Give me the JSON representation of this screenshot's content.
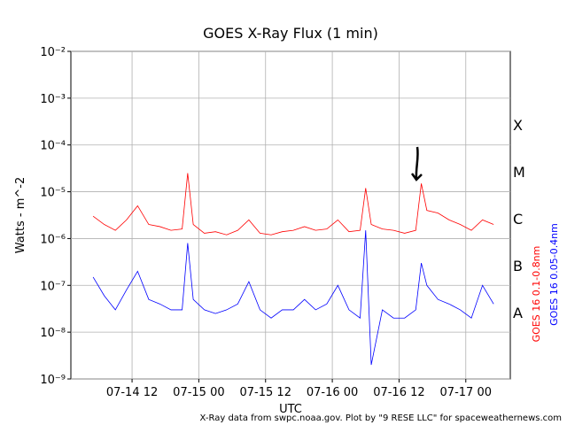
{
  "chart_data": {
    "type": "line",
    "title": "GOES X-Ray Flux (1 min)",
    "xlabel": "UTC",
    "ylabel": "Watts - m^-2",
    "footer": "X-Ray data from swpc.noaa.gov. Plot by \"9 RESE LLC\" for spaceweathernews.com",
    "class_labels": [
      "A",
      "B",
      "C",
      "M",
      "X"
    ],
    "ylog": true,
    "grid": true,
    "xlim": [
      "07-14 01",
      "07-17 08"
    ],
    "xticks": [
      "07-14 12",
      "07-15 00",
      "07-15 12",
      "07-16 00",
      "07-16 12",
      "07-17 00"
    ],
    "ylim": [
      1e-09,
      0.01
    ],
    "yticks": [
      {
        "value": 1e-09,
        "label": "10⁻⁹"
      },
      {
        "value": 1e-08,
        "label": "10⁻⁸"
      },
      {
        "value": 1e-07,
        "label": "10⁻⁷"
      },
      {
        "value": 1e-06,
        "label": "10⁻⁶"
      },
      {
        "value": 1e-05,
        "label": "10⁻⁵"
      },
      {
        "value": 0.0001,
        "label": "10⁻⁴"
      },
      {
        "value": 0.001,
        "label": "10⁻³"
      },
      {
        "value": 0.01,
        "label": "10⁻²"
      }
    ],
    "x": [
      "07-14 05",
      "07-14 07",
      "07-14 09",
      "07-14 11",
      "07-14 13",
      "07-14 15",
      "07-14 17",
      "07-14 19",
      "07-14 21",
      "07-14 22",
      "07-14 23",
      "07-15 01",
      "07-15 03",
      "07-15 05",
      "07-15 07",
      "07-15 09",
      "07-15 11",
      "07-15 13",
      "07-15 15",
      "07-15 17",
      "07-15 19",
      "07-15 21",
      "07-15 23",
      "07-16 01",
      "07-16 03",
      "07-16 05",
      "07-16 06",
      "07-16 07",
      "07-16 09",
      "07-16 11",
      "07-16 13",
      "07-16 15",
      "07-16 16",
      "07-16 17",
      "07-16 19",
      "07-16 21",
      "07-16 23",
      "07-17 01",
      "07-17 03",
      "07-17 05"
    ],
    "series": [
      {
        "name": "GOES 16 0.1-0.8nm",
        "color": "#ff0000",
        "values": [
          3e-06,
          2e-06,
          1.5e-06,
          2.5e-06,
          5e-06,
          2e-06,
          1.8e-06,
          1.5e-06,
          1.6e-06,
          2.5e-05,
          2e-06,
          1.3e-06,
          1.4e-06,
          1.2e-06,
          1.5e-06,
          2.5e-06,
          1.3e-06,
          1.2e-06,
          1.4e-06,
          1.5e-06,
          1.8e-06,
          1.5e-06,
          1.6e-06,
          2.5e-06,
          1.4e-06,
          1.5e-06,
          1.2e-05,
          2e-06,
          1.6e-06,
          1.5e-06,
          1.3e-06,
          1.5e-06,
          1.5e-05,
          4e-06,
          3.5e-06,
          2.5e-06,
          2e-06,
          1.5e-06,
          2.5e-06,
          2e-06
        ]
      },
      {
        "name": "GOES 16 0.05-0.4nm",
        "color": "#0000ff",
        "values": [
          1.5e-07,
          6e-08,
          3e-08,
          8e-08,
          2e-07,
          5e-08,
          4e-08,
          3e-08,
          3e-08,
          8e-07,
          5e-08,
          3e-08,
          2.5e-08,
          3e-08,
          4e-08,
          1.2e-07,
          3e-08,
          2e-08,
          3e-08,
          3e-08,
          5e-08,
          3e-08,
          4e-08,
          1e-07,
          3e-08,
          2e-08,
          1.5e-06,
          2e-09,
          3e-08,
          2e-08,
          2e-08,
          3e-08,
          3e-07,
          1e-07,
          5e-08,
          4e-08,
          3e-08,
          2e-08,
          1e-07,
          4e-08
        ]
      }
    ]
  }
}
